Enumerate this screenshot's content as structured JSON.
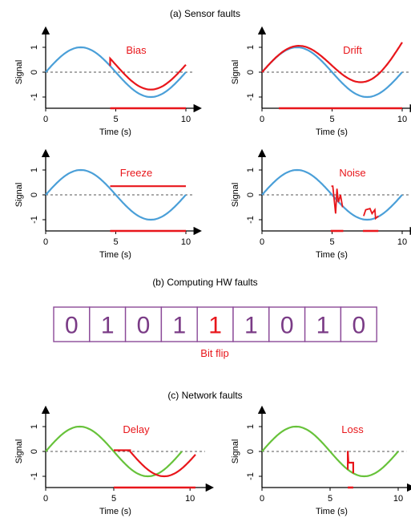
{
  "titles": {
    "sensor": "(a) Sensor faults",
    "computing": "(b) Computing HW faults",
    "network": "(c) Network faults"
  },
  "colors": {
    "signal_sensor": "#4a9fd8",
    "signal_network": "#67c23a",
    "fault": "#e8161b",
    "bit_normal": "#7a3b86",
    "bit_flipped": "#e8161b",
    "bit_border": "#8b4a98",
    "baseline": "#555555"
  },
  "axes": {
    "xlabel": "Time (s)",
    "ylabel": "Signal",
    "xticks": [
      "0",
      "5",
      "10"
    ],
    "yticks": [
      "1",
      "0",
      "-1"
    ]
  },
  "computing": {
    "bits": [
      "0",
      "1",
      "0",
      "1",
      "1",
      "1",
      "0",
      "1",
      "0"
    ],
    "flipped_index": 4,
    "caption": "Bit flip"
  },
  "chart_data": [
    {
      "type": "line",
      "fault": "Bias",
      "xlabel": "Time (s)",
      "ylabel": "Signal",
      "xlim": [
        0,
        10
      ],
      "ylim": [
        -1,
        1
      ],
      "series": [
        {
          "role": "normal",
          "values": "sin(2*pi*t/10), t in [0,10]"
        },
        {
          "role": "fault",
          "x_range": [
            4.6,
            10
          ],
          "offset": 0.3
        }
      ],
      "fault_window": [
        4.6,
        10
      ]
    },
    {
      "type": "line",
      "fault": "Drift",
      "xlabel": "Time (s)",
      "ylabel": "Signal",
      "xlim": [
        0,
        10
      ],
      "ylim": [
        -1,
        1
      ],
      "series": [
        {
          "role": "normal",
          "values": "sin(2*pi*t/10), t in [0,10]"
        },
        {
          "role": "fault",
          "x_range": [
            0,
            10
          ],
          "drift_end": 1.2
        }
      ],
      "fault_window": [
        1.2,
        10
      ]
    },
    {
      "type": "line",
      "fault": "Freeze",
      "xlabel": "Time (s)",
      "ylabel": "Signal",
      "xlim": [
        0,
        10
      ],
      "ylim": [
        -1,
        1
      ],
      "series": [
        {
          "role": "normal",
          "values": "sin(2*pi*t/10), t in [0,10]"
        },
        {
          "role": "fault",
          "x_range": [
            4.6,
            10
          ],
          "frozen_value": 0.35
        }
      ],
      "fault_window": [
        4.6,
        10
      ]
    },
    {
      "type": "line",
      "fault": "Noise",
      "xlabel": "Time (s)",
      "ylabel": "Signal",
      "xlim": [
        0,
        10
      ],
      "ylim": [
        -1,
        1
      ],
      "series": [
        {
          "role": "normal",
          "values": "sin(2*pi*t/10), t in [0,10]"
        },
        {
          "role": "fault",
          "bursts": [
            [
              4.9,
              5.8
            ],
            [
              7.2,
              8.3
            ]
          ]
        }
      ],
      "fault_window": [
        [
          4.9,
          5.8
        ],
        [
          7.2,
          8.3
        ]
      ]
    },
    {
      "type": "line",
      "fault": "Delay",
      "xlabel": "Time (s)",
      "ylabel": "Signal",
      "xlim": [
        0,
        11
      ],
      "ylim": [
        -1,
        1
      ],
      "series": [
        {
          "role": "normal",
          "values": "sin(2*pi*t/10), t in [0,10]"
        },
        {
          "role": "fault",
          "x_range": [
            5,
            11
          ],
          "delay": 1.2
        }
      ],
      "fault_window": [
        5,
        11
      ]
    },
    {
      "type": "line",
      "fault": "Loss",
      "xlabel": "Time (s)",
      "ylabel": "Signal",
      "xlim": [
        0,
        10
      ],
      "ylim": [
        -1,
        1
      ],
      "series": [
        {
          "role": "normal",
          "values": "sin(2*pi*t/10), t in [0,10]"
        },
        {
          "role": "fault",
          "dropout": [
            6.3,
            6.7
          ],
          "value": 0
        }
      ],
      "fault_window": [
        6.3,
        6.7
      ]
    }
  ]
}
